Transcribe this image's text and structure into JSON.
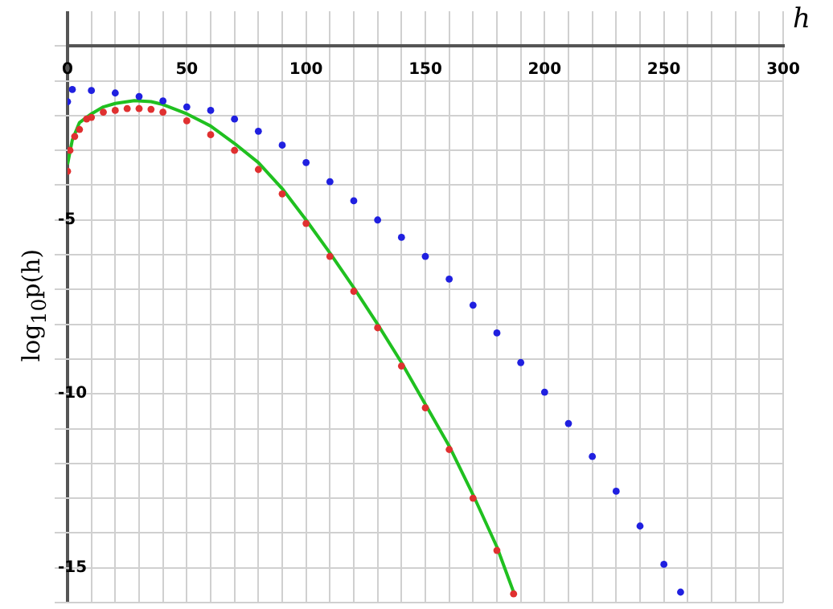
{
  "chart_data": {
    "type": "scatter",
    "xlabel": "h",
    "ylabel": "log$_{10}$p(h)",
    "xlim": [
      0,
      300
    ],
    "ylim": [
      -16,
      1
    ],
    "xticks": [
      0,
      {
        "value": 10,
        "label": null
      },
      {
        "value": 20,
        "label": null
      },
      {
        "value": 30,
        "label": null
      },
      {
        "value": 40,
        "label": null
      },
      50,
      {
        "value": 60,
        "label": null
      },
      {
        "value": 70,
        "label": null
      },
      {
        "value": 80,
        "label": null
      },
      {
        "value": 90,
        "label": null
      },
      100,
      {
        "value": 110,
        "label": null
      },
      {
        "value": 120,
        "label": null
      },
      {
        "value": 130,
        "label": null
      },
      {
        "value": 140,
        "label": null
      },
      150,
      {
        "value": 160,
        "label": null
      },
      {
        "value": 170,
        "label": null
      },
      {
        "value": 180,
        "label": null
      },
      {
        "value": 190,
        "label": null
      },
      200,
      {
        "value": 210,
        "label": null
      },
      {
        "value": 220,
        "label": null
      },
      {
        "value": 230,
        "label": null
      },
      {
        "value": 240,
        "label": null
      },
      250,
      {
        "value": 260,
        "label": null
      },
      {
        "value": 270,
        "label": null
      },
      {
        "value": 280,
        "label": null
      },
      {
        "value": 290,
        "label": null
      },
      300
    ],
    "yticks": [
      {
        "value": -16,
        "label": null
      },
      -15,
      {
        "value": -14,
        "label": null
      },
      {
        "value": -13,
        "label": null
      },
      {
        "value": -12,
        "label": null
      },
      {
        "value": -11,
        "label": null
      },
      -10,
      {
        "value": -9,
        "label": null
      },
      {
        "value": -8,
        "label": null
      },
      {
        "value": -7,
        "label": null
      },
      {
        "value": -6,
        "label": null
      },
      -5,
      {
        "value": -4,
        "label": null
      },
      {
        "value": -3,
        "label": null
      },
      {
        "value": -2,
        "label": null
      },
      {
        "value": -1,
        "label": null
      },
      {
        "value": 0,
        "label": null
      }
    ],
    "grid": true,
    "marker": "circle",
    "series": [
      {
        "type": "scatter",
        "color": "#2020e0",
        "x": [
          0,
          2,
          10,
          20,
          30,
          40,
          50,
          60,
          70,
          80,
          90,
          100,
          110,
          120,
          130,
          140,
          150,
          160,
          170,
          180,
          190,
          200,
          210,
          220,
          230,
          240,
          250,
          257
        ],
        "values": [
          -1.6,
          -1.25,
          -1.28,
          -1.35,
          -1.45,
          -1.58,
          -1.75,
          -1.85,
          -2.1,
          -2.45,
          -2.85,
          -3.35,
          -3.9,
          -4.45,
          -5.0,
          -5.5,
          -6.05,
          -6.7,
          -7.45,
          -8.25,
          -9.1,
          -9.95,
          -10.85,
          -11.8,
          -12.8,
          -13.8,
          -14.9,
          -15.7
        ]
      },
      {
        "type": "scatter",
        "color": "#e03030",
        "x": [
          0,
          1,
          3,
          5,
          8,
          10,
          15,
          20,
          25,
          30,
          35,
          40,
          50,
          60,
          70,
          80,
          90,
          100,
          110,
          120,
          130,
          140,
          150,
          160,
          170,
          180,
          187
        ],
        "values": [
          -3.6,
          -3.0,
          -2.6,
          -2.4,
          -2.1,
          -2.05,
          -1.9,
          -1.85,
          -1.8,
          -1.8,
          -1.82,
          -1.9,
          -2.15,
          -2.55,
          -3.0,
          -3.55,
          -4.25,
          -5.1,
          -6.05,
          -7.05,
          -8.1,
          -9.2,
          -10.4,
          -11.6,
          -13.0,
          -14.5,
          -15.75
        ]
      },
      {
        "type": "line",
        "color": "#20c020",
        "marker": "none",
        "x": [
          0,
          2,
          5,
          10,
          15,
          20,
          28,
          35,
          40,
          50,
          60,
          70,
          80,
          90,
          100,
          110,
          120,
          130,
          140,
          150,
          160,
          170,
          180,
          187
        ],
        "values": [
          -3.4,
          -2.7,
          -2.2,
          -1.95,
          -1.75,
          -1.65,
          -1.57,
          -1.6,
          -1.68,
          -1.95,
          -2.3,
          -2.8,
          -3.35,
          -4.1,
          -5.0,
          -5.95,
          -6.95,
          -8.0,
          -9.1,
          -10.3,
          -11.5,
          -12.9,
          -14.4,
          -15.7
        ]
      }
    ]
  }
}
